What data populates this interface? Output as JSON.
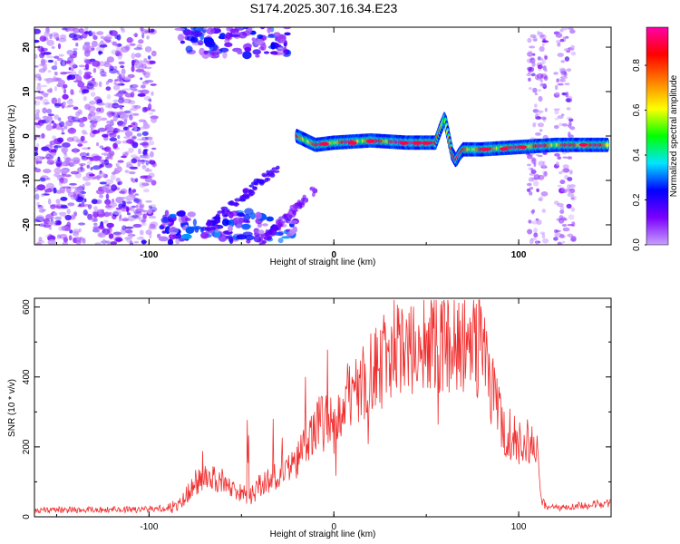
{
  "title": "S174.2025.307.16.34.E23",
  "spectrogram": {
    "xlabel": "Height of straight line (km)",
    "ylabel": "Frequency (Hz)",
    "xlim": [
      -162,
      150
    ],
    "ylim": [
      -24.5,
      24.5
    ],
    "xticks": [
      {
        "value": -100,
        "label": "-100"
      },
      {
        "value": 0,
        "label": "0"
      },
      {
        "value": 100,
        "label": "100"
      }
    ],
    "yticks": [
      {
        "value": -20,
        "label": "-20"
      },
      {
        "value": -10,
        "label": "-10"
      },
      {
        "value": 0,
        "label": "0"
      },
      {
        "value": 10,
        "label": "10"
      },
      {
        "value": 20,
        "label": "20"
      }
    ]
  },
  "colorbar": {
    "label": "Normalized spectral amplitude",
    "range": [
      0.0,
      0.97
    ],
    "ticks": [
      {
        "value": 0.0,
        "label": "0.0"
      },
      {
        "value": 0.2,
        "label": "0.2"
      },
      {
        "value": 0.4,
        "label": "0.4"
      },
      {
        "value": 0.6,
        "label": "0.6"
      },
      {
        "value": 0.8,
        "label": "0.8"
      }
    ],
    "colors": [
      "#c8a0ff",
      "#7b00ff",
      "#0000ff",
      "#00e5ff",
      "#00ff00",
      "#ffff00",
      "#ff8000",
      "#ff0000",
      "#ff00aa"
    ]
  },
  "chart_data": [
    {
      "type": "heatmap",
      "title": "S174.2025.307.16.34.E23",
      "xlabel": "Height of straight line (km)",
      "ylabel": "Frequency (Hz)",
      "xlim": [
        -162,
        150
      ],
      "ylim": [
        -24.5,
        24.5
      ],
      "value_label": "Normalized spectral amplitude",
      "value_range": [
        0.0,
        0.97
      ],
      "main_track": {
        "x_range": [
          -20,
          148
        ],
        "frequency": [
          [
            -20,
            0.0
          ],
          [
            -10,
            -2.0
          ],
          [
            0,
            -1.5
          ],
          [
            20,
            -1.0
          ],
          [
            40,
            -1.5
          ],
          [
            55,
            -1.5
          ],
          [
            58,
            2.0
          ],
          [
            60,
            4.0
          ],
          [
            62,
            0.0
          ],
          [
            64,
            -4.0
          ],
          [
            66,
            -5.5
          ],
          [
            68,
            -4.0
          ],
          [
            70,
            -3.0
          ],
          [
            80,
            -3.0
          ],
          [
            100,
            -2.5
          ],
          [
            120,
            -2.0
          ],
          [
            148,
            -2.0
          ]
        ],
        "peak_amplitude": 0.97
      }
    },
    {
      "type": "line",
      "xlabel": "Height of straight line (km)",
      "ylabel": "SNR (10 * v/v)",
      "xlim": [
        -162,
        150
      ],
      "ylim": [
        0,
        625
      ],
      "xticks": [
        {
          "value": -100,
          "label": "-100"
        },
        {
          "value": 0,
          "label": "0"
        },
        {
          "value": 100,
          "label": "100"
        }
      ],
      "yticks": [
        {
          "value": 0,
          "label": "0"
        },
        {
          "value": 200,
          "label": "200"
        },
        {
          "value": 400,
          "label": "400"
        },
        {
          "value": 600,
          "label": "600"
        }
      ],
      "series": [
        {
          "name": "SNR",
          "color": "#f03030",
          "x": [
            -162,
            -140,
            -120,
            -100,
            -90,
            -85,
            -80,
            -75,
            -70,
            -65,
            -60,
            -55,
            -50,
            -45,
            -40,
            -35,
            -30,
            -25,
            -20,
            -15,
            -10,
            -5,
            0,
            5,
            10,
            15,
            20,
            25,
            30,
            35,
            40,
            45,
            50,
            55,
            60,
            65,
            70,
            75,
            80,
            85,
            90,
            95,
            100,
            105,
            110,
            112,
            115,
            120,
            130,
            140,
            150
          ],
          "values": [
            20,
            20,
            20,
            22,
            25,
            30,
            60,
            100,
            110,
            115,
            100,
            85,
            70,
            60,
            90,
            105,
            115,
            130,
            160,
            200,
            255,
            270,
            260,
            300,
            350,
            390,
            420,
            440,
            455,
            470,
            480,
            485,
            490,
            495,
            500,
            505,
            500,
            495,
            475,
            380,
            280,
            235,
            220,
            210,
            180,
            50,
            25,
            25,
            30,
            35,
            40
          ]
        }
      ]
    }
  ]
}
